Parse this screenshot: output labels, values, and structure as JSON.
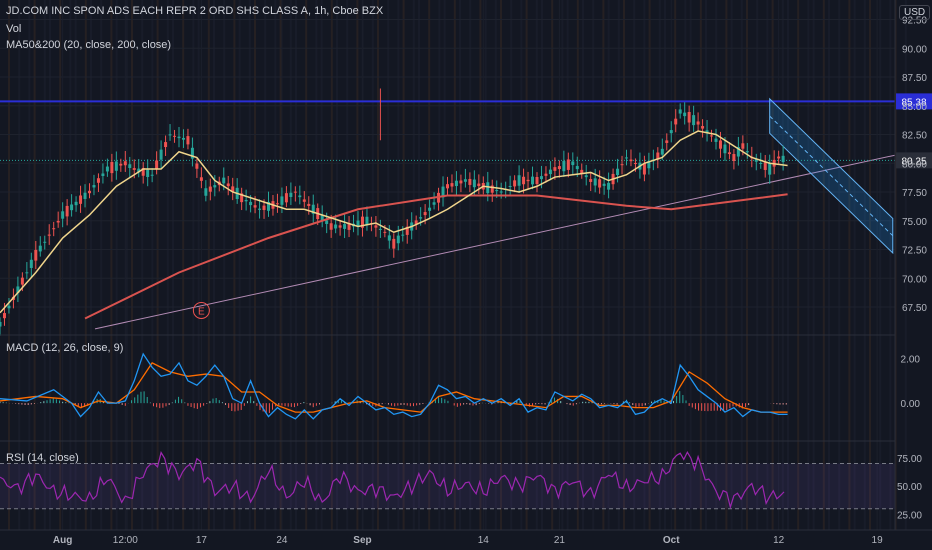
{
  "header": {
    "title": "JD.COM INC SPON ADS EACH REPR 2 ORD SHS CLASS A, 1h, Cboe BZX",
    "vol_label": "Vol",
    "ma_label": "MA50&200 (20, close, 200, close)",
    "currency": "USD"
  },
  "earnings_marker": "E",
  "price_tags": {
    "last": "80.25",
    "horizontal_line": "85.38"
  },
  "colors": {
    "background": "#131722",
    "up": "#26a69a",
    "down": "#ef5350",
    "ma_fast": "#f0d58c",
    "ma_slow": "#d9534f",
    "macd": "#2196f3",
    "signal": "#ff6d00",
    "rsi": "#9c27b0",
    "hline": "#2a2ed6",
    "channel": "#64b5f6",
    "trendline": "#b28bb4"
  },
  "chart_data": [
    {
      "type": "line",
      "title": "JD.COM INC SPON ADS EACH REPR 2 ORD SHS CLASS A, 1h, Cboe BZX",
      "y_ticks": [
        "67.50",
        "70.00",
        "72.50",
        "75.00",
        "77.50",
        "80.00",
        "82.50",
        "85.00",
        "87.50",
        "90.00",
        "92.50"
      ],
      "x_ticks": [
        "Aug",
        "12:00",
        "17",
        "24",
        "Sep",
        "14",
        "21",
        "Oct",
        "12",
        "19"
      ],
      "ylim": [
        65.5,
        93.5
      ],
      "series": [
        {
          "name": "close",
          "x": [
            0,
            8,
            14,
            20,
            24,
            28,
            30,
            34,
            38,
            42,
            46,
            50,
            54,
            58,
            62,
            66,
            70,
            74,
            78,
            82,
            86,
            88,
            92,
            96,
            100,
            104,
            108,
            112,
            116,
            120,
            124,
            128,
            132,
            136,
            140,
            144,
            148,
            152,
            156,
            160,
            164,
            166,
            168,
            170,
            172,
            174,
            176
          ],
          "values": [
            66.0,
            72.0,
            75.5,
            77.5,
            79.5,
            80.0,
            79.5,
            79.0,
            82.5,
            82.0,
            77.5,
            78.5,
            77.0,
            76.0,
            76.5,
            77.5,
            76.0,
            74.5,
            74.5,
            75.0,
            74.0,
            73.0,
            74.5,
            76.0,
            78.0,
            78.5,
            78.0,
            77.5,
            78.5,
            78.5,
            79.5,
            80.0,
            78.5,
            78.0,
            80.5,
            79.5,
            81.0,
            84.5,
            83.5,
            82.0,
            80.5,
            81.5,
            80.5,
            80.0,
            79.5,
            80.5,
            80.25
          ]
        },
        {
          "name": "MA 20",
          "x": [
            0,
            8,
            14,
            20,
            26,
            32,
            36,
            40,
            44,
            48,
            52,
            56,
            60,
            64,
            68,
            72,
            76,
            80,
            84,
            88,
            92,
            96,
            100,
            104,
            108,
            112,
            116,
            120,
            124,
            128,
            132,
            136,
            140,
            144,
            148,
            152,
            156,
            160,
            164,
            168,
            172,
            176
          ],
          "values": [
            67.0,
            70.5,
            73.5,
            75.5,
            78.0,
            79.5,
            79.5,
            81.0,
            80.5,
            78.5,
            77.5,
            77.0,
            76.5,
            76.0,
            76.0,
            75.5,
            75.0,
            74.5,
            74.8,
            74.0,
            74.5,
            75.2,
            76.0,
            77.0,
            78.0,
            77.8,
            77.5,
            78.0,
            78.8,
            79.0,
            79.2,
            78.5,
            79.0,
            80.0,
            80.5,
            82.0,
            82.8,
            82.5,
            81.5,
            80.5,
            80.0,
            79.8
          ]
        },
        {
          "name": "MA 200",
          "x": [
            19,
            40,
            60,
            80,
            100,
            120,
            140,
            150,
            160,
            170,
            176
          ],
          "values": [
            66.5,
            70.5,
            73.5,
            76.0,
            77.2,
            77.2,
            76.3,
            76.0,
            76.5,
            77.0,
            77.3
          ]
        }
      ],
      "horizontal_line": 85.38,
      "last_price": 80.25
    },
    {
      "type": "line",
      "title": "MACD (12, 26, close, 9)",
      "y_ticks": [
        "2.00",
        "0.00"
      ],
      "ylim": [
        -1.2,
        2.6
      ],
      "series": [
        {
          "name": "MACD",
          "x": [
            0,
            6,
            12,
            16,
            18,
            20,
            22,
            24,
            26,
            28,
            30,
            32,
            34,
            36,
            38,
            40,
            42,
            44,
            46,
            48,
            50,
            52,
            54,
            56,
            58,
            60,
            62,
            64,
            66,
            68,
            70,
            72,
            74,
            76,
            78,
            80,
            82,
            84,
            86,
            88,
            90,
            92,
            94,
            96,
            98,
            100,
            102,
            104,
            106,
            108,
            110,
            112,
            114,
            116,
            118,
            120,
            122,
            124,
            126,
            128,
            130,
            132,
            134,
            136,
            138,
            140,
            142,
            144,
            146,
            148,
            150,
            152,
            154,
            156,
            158,
            160,
            162,
            164,
            166,
            168,
            170,
            172,
            174,
            176
          ],
          "values": [
            0.2,
            0.1,
            0.6,
            0.0,
            -0.6,
            -0.2,
            0.5,
            0.0,
            0.0,
            0.1,
            1.0,
            2.2,
            1.6,
            1.2,
            1.3,
            1.8,
            1.0,
            0.8,
            1.2,
            1.7,
            1.2,
            0.2,
            0.0,
            1.0,
            0.0,
            -0.6,
            -0.2,
            -0.5,
            -0.7,
            -0.3,
            -0.7,
            -0.3,
            -0.2,
            0.2,
            -0.1,
            0.3,
            0.0,
            -0.3,
            -0.2,
            -0.5,
            -0.4,
            -0.6,
            -0.5,
            0.0,
            0.8,
            0.6,
            0.2,
            0.3,
            0.0,
            0.2,
            0.0,
            0.2,
            -0.1,
            0.2,
            -0.4,
            -0.2,
            -0.3,
            0.5,
            0.3,
            0.1,
            0.4,
            0.2,
            -0.2,
            -0.1,
            -0.2,
            0.1,
            -0.5,
            -0.4,
            0.0,
            0.2,
            0.0,
            1.7,
            1.2,
            0.6,
            0.3,
            0.0,
            -0.4,
            -0.2,
            -0.6,
            -0.3,
            -0.4,
            -0.4,
            -0.5,
            -0.5
          ]
        },
        {
          "name": "Signal",
          "x": [
            0,
            8,
            14,
            18,
            22,
            26,
            30,
            34,
            38,
            42,
            46,
            50,
            54,
            58,
            62,
            66,
            70,
            74,
            78,
            82,
            86,
            90,
            94,
            98,
            102,
            106,
            110,
            114,
            118,
            122,
            126,
            130,
            134,
            138,
            142,
            146,
            150,
            154,
            158,
            162,
            166,
            170,
            176
          ],
          "values": [
            0.1,
            0.3,
            0.2,
            -0.2,
            0.1,
            0.0,
            0.6,
            1.8,
            1.4,
            1.2,
            1.3,
            1.2,
            0.5,
            0.5,
            -0.1,
            -0.4,
            -0.4,
            -0.2,
            0.0,
            0.1,
            -0.2,
            -0.3,
            -0.4,
            0.3,
            0.5,
            0.2,
            0.1,
            0.0,
            -0.1,
            -0.2,
            0.3,
            0.3,
            -0.1,
            -0.1,
            -0.2,
            -0.2,
            0.1,
            1.4,
            0.9,
            0.2,
            -0.2,
            -0.4,
            -0.4
          ]
        }
      ]
    },
    {
      "type": "line",
      "title": "RSI (14, close)",
      "y_ticks": [
        "75.00",
        "50.00",
        "25.00"
      ],
      "ylim": [
        20,
        82
      ],
      "bands": [
        70,
        30
      ],
      "series": [
        {
          "name": "RSI",
          "x": [
            0,
            4,
            8,
            12,
            16,
            20,
            24,
            28,
            32,
            36,
            40,
            44,
            48,
            52,
            56,
            60,
            64,
            68,
            72,
            76,
            80,
            84,
            88,
            92,
            96,
            100,
            104,
            108,
            112,
            116,
            120,
            124,
            128,
            132,
            136,
            140,
            144,
            148,
            152,
            156,
            160,
            164,
            168,
            172,
            176
          ],
          "values": [
            55,
            48,
            60,
            45,
            42,
            38,
            58,
            35,
            62,
            75,
            60,
            72,
            45,
            50,
            38,
            65,
            40,
            55,
            35,
            60,
            45,
            48,
            40,
            50,
            62,
            46,
            52,
            45,
            58,
            50,
            60,
            45,
            55,
            42,
            62,
            48,
            55,
            58,
            80,
            70,
            45,
            38,
            50,
            40,
            45
          ]
        }
      ]
    }
  ]
}
